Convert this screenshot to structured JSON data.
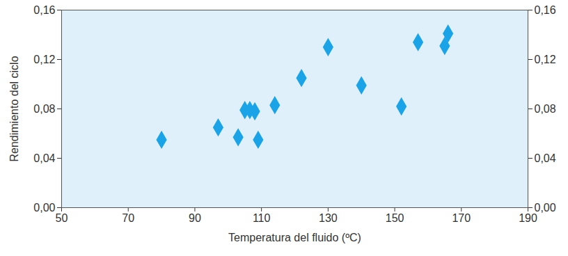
{
  "chart_data": {
    "type": "scatter",
    "x_label": "Temperatura del fluido (ºC)",
    "y_label": "Rendimiento del ciclo",
    "color": "#1ba3e8",
    "marker": "diamond",
    "grid": false,
    "x": [
      80,
      97,
      103,
      105,
      106.5,
      108,
      109,
      114,
      122,
      130,
      140,
      152,
      157,
      165,
      166
    ],
    "values": [
      0.055,
      0.065,
      0.057,
      0.079,
      0.079,
      0.078,
      0.055,
      0.083,
      0.105,
      0.13,
      0.099,
      0.082,
      0.134,
      0.131,
      0.141
    ],
    "xlim": [
      50,
      190
    ],
    "xticks": [
      50,
      70,
      90,
      110,
      130,
      150,
      170,
      190
    ],
    "ylim": [
      0,
      0.16
    ],
    "yticks": [
      {
        "value": 0,
        "label": "0,00"
      },
      {
        "value": 0.04,
        "label": "0,04"
      },
      {
        "value": 0.08,
        "label": "0,08"
      },
      {
        "value": 0.12,
        "label": "0,12"
      },
      {
        "value": 0.16,
        "label": "0,16"
      }
    ]
  }
}
